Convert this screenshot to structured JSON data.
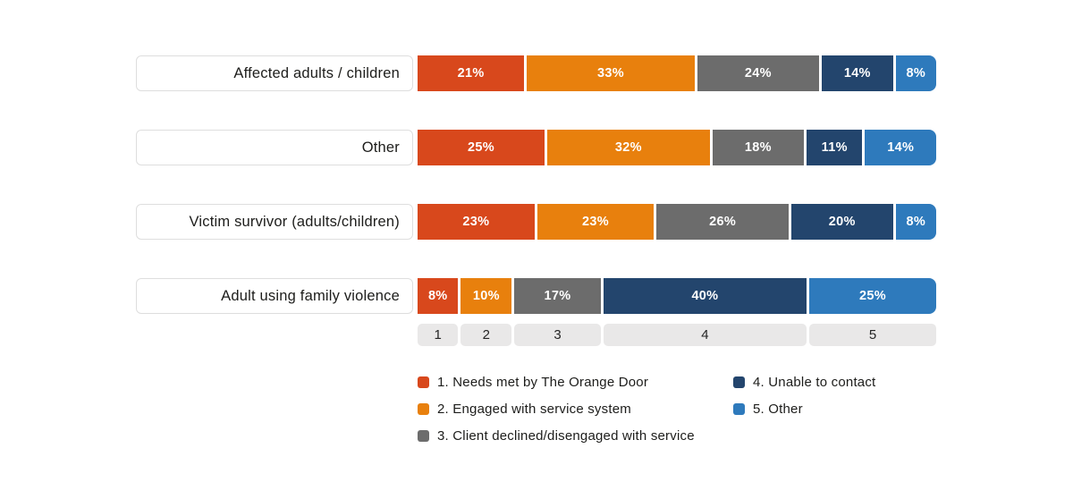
{
  "colors": {
    "cat1": "#d8481c",
    "cat2": "#e8800d",
    "cat3": "#6c6c6c",
    "cat4": "#23456d",
    "cat5": "#2e7abc",
    "label_box_border": "#dedede",
    "axis_box_bg": "#e9e8e8",
    "text": "#1d1d1b",
    "segment_text": "#ffffff"
  },
  "chart_data": {
    "type": "bar",
    "orientation": "horizontal_stacked_100pct",
    "categories": [
      "Affected adults / children",
      "Other",
      "Victim survivor (adults/children)",
      "Adult using family violence"
    ],
    "series": [
      {
        "name": "1. Needs met by The Orange Door",
        "color": "#d8481c",
        "values": [
          21,
          25,
          23,
          8
        ]
      },
      {
        "name": "2. Engaged with service system",
        "color": "#e8800d",
        "values": [
          33,
          32,
          23,
          10
        ]
      },
      {
        "name": "3. Client declined/disengaged with service",
        "color": "#6c6c6c",
        "values": [
          24,
          18,
          26,
          17
        ]
      },
      {
        "name": "4. Unable to contact",
        "color": "#23456d",
        "values": [
          14,
          11,
          20,
          40
        ]
      },
      {
        "name": "5. Other",
        "color": "#2e7abc",
        "values": [
          8,
          14,
          8,
          25
        ]
      }
    ],
    "value_suffix": "%",
    "xlim": [
      0,
      100
    ],
    "axis_ticks": [
      "1",
      "2",
      "3",
      "4",
      "5"
    ],
    "grid": false,
    "legend_position": "bottom"
  },
  "legend": {
    "columns": [
      [
        {
          "label": "1. Needs met by The Orange Door",
          "color": "#d8481c"
        },
        {
          "label": "2. Engaged with service system",
          "color": "#e8800d"
        },
        {
          "label": "3. Client declined/disengaged with service",
          "color": "#6c6c6c"
        }
      ],
      [
        {
          "label": "4. Unable to contact",
          "color": "#23456d"
        },
        {
          "label": "5. Other",
          "color": "#2e7abc"
        }
      ]
    ]
  }
}
